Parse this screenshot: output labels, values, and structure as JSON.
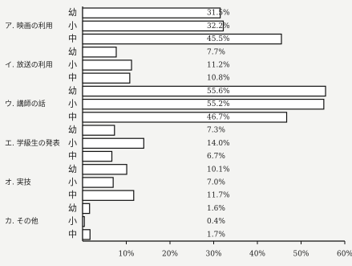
{
  "chart_data": {
    "type": "hbar",
    "subcategories": [
      "幼",
      "小",
      "中"
    ],
    "groups": [
      {
        "name": "ア. 映画の利用",
        "values": [
          31.5,
          32.2,
          45.5
        ],
        "value_labels": [
          "31.5%",
          "32.2%",
          "45.5%"
        ]
      },
      {
        "name": "イ. 放送の利用",
        "values": [
          7.7,
          11.2,
          10.8
        ],
        "value_labels": [
          "7.7%",
          "11.2%",
          "10.8%"
        ]
      },
      {
        "name": "ウ. 講師の話",
        "values": [
          55.6,
          55.2,
          46.7
        ],
        "value_labels": [
          "55.6%",
          "55.2%",
          "46.7%"
        ]
      },
      {
        "name": "エ. 学級生の発表",
        "values": [
          7.3,
          14.0,
          6.7
        ],
        "value_labels": [
          "7.3%",
          "14.0%",
          "6.7%"
        ]
      },
      {
        "name": "オ. 実技",
        "values": [
          10.1,
          7.0,
          11.7
        ],
        "value_labels": [
          "10.1%",
          "7.0%",
          "11.7%"
        ]
      },
      {
        "name": "カ. その他",
        "values": [
          1.6,
          0.4,
          1.7
        ],
        "value_labels": [
          "1.6%",
          "0.4%",
          "1.7%"
        ]
      }
    ],
    "color": "#ffffff",
    "xlim": [
      0,
      60
    ],
    "xticks": [
      {
        "value": 10,
        "label": "10%"
      },
      {
        "value": 20,
        "label": "20%"
      },
      {
        "value": 30,
        "label": "30%"
      },
      {
        "value": 40,
        "label": "40%"
      },
      {
        "value": 50,
        "label": "50%"
      },
      {
        "value": 60,
        "label": "60%"
      }
    ]
  }
}
